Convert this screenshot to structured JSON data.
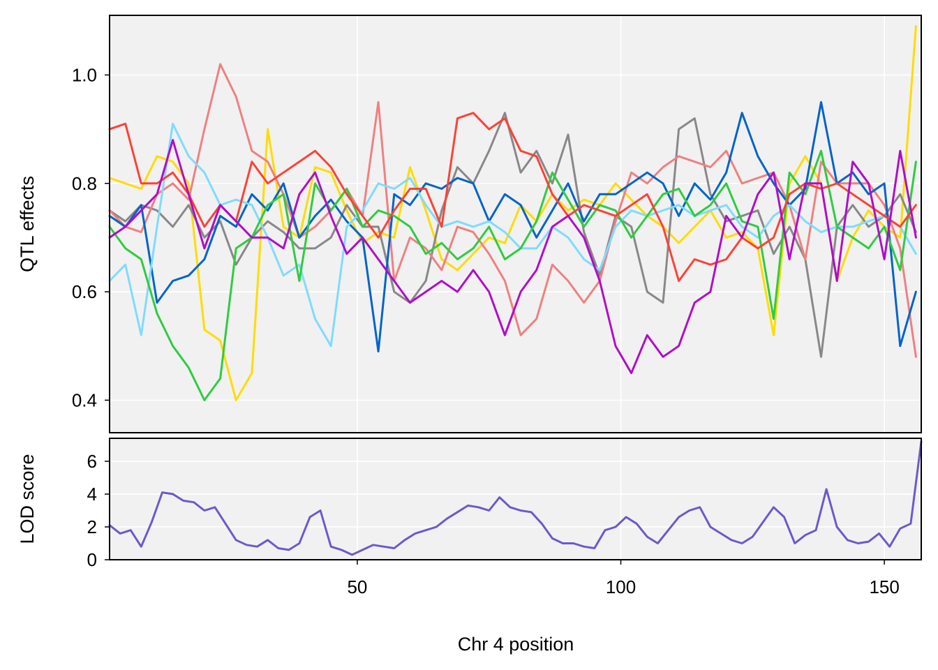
{
  "chart_data": [
    {
      "type": "line",
      "panel": "effects",
      "ylabel": "QTL effects",
      "xlim": [
        3,
        157
      ],
      "ylim": [
        0.34,
        1.11
      ],
      "yticks": [
        0.4,
        0.6,
        0.8,
        1.0
      ],
      "ytick_labels": [
        "0.4",
        "0.6",
        "0.8",
        "1.0"
      ],
      "xticks": [
        50,
        100,
        150
      ],
      "grid": true,
      "x": [
        3,
        6,
        9,
        12,
        15,
        18,
        21,
        24,
        27,
        30,
        33,
        36,
        39,
        42,
        45,
        48,
        51,
        54,
        57,
        60,
        63,
        66,
        69,
        72,
        75,
        78,
        81,
        84,
        87,
        90,
        93,
        96,
        99,
        102,
        105,
        108,
        111,
        114,
        117,
        120,
        123,
        126,
        129,
        132,
        135,
        138,
        141,
        144,
        147,
        150,
        153,
        156
      ],
      "series": [
        {
          "color": "#FFDC00",
          "values": [
            0.81,
            0.8,
            0.79,
            0.85,
            0.84,
            0.8,
            0.53,
            0.51,
            0.4,
            0.45,
            0.9,
            0.72,
            0.7,
            0.83,
            0.82,
            0.75,
            0.69,
            0.71,
            0.7,
            0.83,
            0.75,
            0.66,
            0.64,
            0.67,
            0.7,
            0.69,
            0.76,
            0.73,
            0.78,
            0.75,
            0.77,
            0.76,
            0.8,
            0.77,
            0.74,
            0.72,
            0.69,
            0.72,
            0.75,
            0.7,
            0.71,
            0.68,
            0.52,
            0.8,
            0.85,
            0.8,
            0.62,
            0.7,
            0.75,
            0.72,
            0.7,
            1.09
          ]
        },
        {
          "color": "#888888",
          "values": [
            0.75,
            0.73,
            0.76,
            0.75,
            0.72,
            0.76,
            0.7,
            0.73,
            0.65,
            0.7,
            0.73,
            0.71,
            0.68,
            0.68,
            0.7,
            0.76,
            0.72,
            0.72,
            0.6,
            0.58,
            0.62,
            0.75,
            0.83,
            0.8,
            0.86,
            0.93,
            0.82,
            0.86,
            0.8,
            0.89,
            0.71,
            0.63,
            0.74,
            0.72,
            0.6,
            0.58,
            0.9,
            0.92,
            0.78,
            0.73,
            0.74,
            0.75,
            0.67,
            0.72,
            0.66,
            0.48,
            0.72,
            0.76,
            0.72,
            0.74,
            0.78,
            0.71
          ]
        },
        {
          "color": "#F08080",
          "values": [
            0.75,
            0.72,
            0.71,
            0.78,
            0.8,
            0.77,
            0.9,
            1.02,
            0.96,
            0.86,
            0.84,
            0.78,
            0.7,
            0.72,
            0.75,
            0.79,
            0.74,
            0.95,
            0.62,
            0.7,
            0.68,
            0.64,
            0.72,
            0.71,
            0.67,
            0.62,
            0.52,
            0.55,
            0.65,
            0.62,
            0.58,
            0.62,
            0.73,
            0.82,
            0.8,
            0.83,
            0.85,
            0.84,
            0.83,
            0.86,
            0.8,
            0.81,
            0.82,
            0.76,
            0.66,
            0.84,
            0.8,
            0.8,
            0.8,
            0.76,
            0.68,
            0.48
          ]
        },
        {
          "color": "#0064C9",
          "values": [
            0.74,
            0.72,
            0.76,
            0.58,
            0.62,
            0.63,
            0.66,
            0.74,
            0.72,
            0.78,
            0.75,
            0.8,
            0.7,
            0.74,
            0.77,
            0.73,
            0.7,
            0.49,
            0.78,
            0.76,
            0.8,
            0.79,
            0.81,
            0.8,
            0.73,
            0.78,
            0.76,
            0.7,
            0.75,
            0.8,
            0.73,
            0.78,
            0.78,
            0.8,
            0.82,
            0.8,
            0.74,
            0.8,
            0.77,
            0.82,
            0.93,
            0.85,
            0.8,
            0.76,
            0.79,
            0.95,
            0.8,
            0.82,
            0.78,
            0.8,
            0.5,
            0.6
          ]
        },
        {
          "color": "#7FDBFF",
          "values": [
            0.62,
            0.65,
            0.52,
            0.72,
            0.91,
            0.85,
            0.82,
            0.76,
            0.77,
            0.76,
            0.7,
            0.63,
            0.65,
            0.55,
            0.5,
            0.72,
            0.75,
            0.8,
            0.79,
            0.81,
            0.76,
            0.72,
            0.73,
            0.72,
            0.73,
            0.71,
            0.68,
            0.68,
            0.72,
            0.7,
            0.66,
            0.64,
            0.72,
            0.75,
            0.74,
            0.75,
            0.76,
            0.74,
            0.75,
            0.76,
            0.72,
            0.7,
            0.74,
            0.76,
            0.73,
            0.71,
            0.72,
            0.72,
            0.73,
            0.74,
            0.72,
            0.67
          ]
        },
        {
          "color": "#2ECC40",
          "values": [
            0.72,
            0.68,
            0.66,
            0.56,
            0.5,
            0.46,
            0.4,
            0.44,
            0.68,
            0.7,
            0.76,
            0.78,
            0.62,
            0.8,
            0.75,
            0.79,
            0.72,
            0.75,
            0.74,
            0.72,
            0.67,
            0.69,
            0.66,
            0.68,
            0.72,
            0.66,
            0.68,
            0.73,
            0.82,
            0.77,
            0.72,
            0.76,
            0.75,
            0.7,
            0.74,
            0.78,
            0.79,
            0.74,
            0.76,
            0.8,
            0.73,
            0.72,
            0.55,
            0.82,
            0.78,
            0.86,
            0.72,
            0.7,
            0.68,
            0.72,
            0.64,
            0.84
          ]
        },
        {
          "color": "#FF4136",
          "values": [
            0.9,
            0.91,
            0.8,
            0.8,
            0.82,
            0.78,
            0.72,
            0.76,
            0.73,
            0.84,
            0.8,
            0.82,
            0.84,
            0.86,
            0.83,
            0.78,
            0.74,
            0.7,
            0.75,
            0.79,
            0.79,
            0.72,
            0.92,
            0.93,
            0.9,
            0.92,
            0.86,
            0.85,
            0.78,
            0.74,
            0.76,
            0.75,
            0.74,
            0.76,
            0.78,
            0.72,
            0.62,
            0.66,
            0.65,
            0.66,
            0.7,
            0.68,
            0.7,
            0.78,
            0.8,
            0.79,
            0.8,
            0.78,
            0.76,
            0.74,
            0.72,
            0.76
          ]
        },
        {
          "color": "#B10DC9",
          "values": [
            0.7,
            0.72,
            0.75,
            0.78,
            0.88,
            0.78,
            0.68,
            0.76,
            0.73,
            0.7,
            0.7,
            0.68,
            0.78,
            0.82,
            0.74,
            0.67,
            0.7,
            0.66,
            0.62,
            0.58,
            0.6,
            0.62,
            0.6,
            0.64,
            0.6,
            0.52,
            0.6,
            0.64,
            0.72,
            0.74,
            0.7,
            0.62,
            0.5,
            0.45,
            0.52,
            0.48,
            0.5,
            0.58,
            0.6,
            0.74,
            0.7,
            0.78,
            0.82,
            0.66,
            0.8,
            0.8,
            0.62,
            0.84,
            0.8,
            0.66,
            0.86,
            0.7
          ]
        }
      ]
    },
    {
      "type": "line",
      "panel": "lod",
      "xlabel": "Chr 4 position",
      "ylabel": "LOD score",
      "xlim": [
        3,
        157
      ],
      "ylim": [
        0,
        7.4
      ],
      "yticks": [
        0,
        2,
        4,
        6
      ],
      "ytick_labels": [
        "0",
        "2",
        "4",
        "6"
      ],
      "xticks": [
        50,
        100,
        150
      ],
      "xtick_labels": [
        "50",
        "100",
        "150"
      ],
      "grid": true,
      "x": [
        3,
        5,
        7,
        9,
        11,
        13,
        15,
        17,
        19,
        21,
        23,
        25,
        27,
        29,
        31,
        33,
        35,
        37,
        39,
        41,
        43,
        45,
        47,
        49,
        51,
        53,
        55,
        57,
        59,
        61,
        63,
        65,
        67,
        69,
        71,
        73,
        75,
        77,
        79,
        81,
        83,
        85,
        87,
        89,
        91,
        93,
        95,
        97,
        99,
        101,
        103,
        105,
        107,
        109,
        111,
        113,
        115,
        117,
        119,
        121,
        123,
        125,
        127,
        129,
        131,
        133,
        135,
        137,
        139,
        141,
        143,
        145,
        147,
        149,
        151,
        153,
        155,
        157
      ],
      "series": [
        {
          "color": "#6A5ACD",
          "values": [
            2.1,
            1.6,
            1.8,
            0.8,
            2.3,
            4.1,
            4.0,
            3.6,
            3.5,
            3.0,
            3.2,
            2.2,
            1.2,
            0.9,
            0.8,
            1.2,
            0.7,
            0.6,
            1.0,
            2.6,
            3.0,
            0.8,
            0.6,
            0.3,
            0.6,
            0.9,
            0.8,
            0.7,
            1.2,
            1.6,
            1.8,
            2.0,
            2.5,
            2.9,
            3.3,
            3.2,
            3.0,
            3.8,
            3.2,
            3.0,
            2.9,
            2.2,
            1.3,
            1.0,
            1.0,
            0.8,
            0.7,
            1.8,
            2.0,
            2.6,
            2.2,
            1.4,
            1.0,
            1.8,
            2.6,
            3.0,
            3.2,
            2.0,
            1.6,
            1.2,
            1.0,
            1.4,
            2.3,
            3.2,
            2.6,
            1.0,
            1.5,
            1.8,
            4.3,
            2.0,
            1.2,
            1.0,
            1.1,
            1.6,
            0.8,
            1.9,
            2.2,
            7.2
          ]
        }
      ]
    }
  ]
}
